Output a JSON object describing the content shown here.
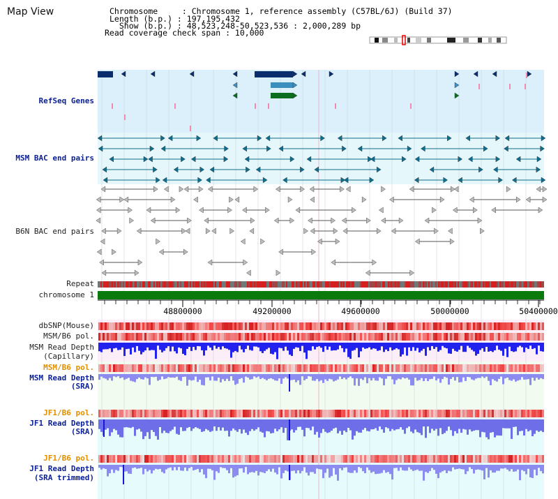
{
  "page_title": "Map View",
  "header": {
    "chromosome_line": "Chromosome     : Chromosome 1, reference assembly (C57BL/6J) (Build 37)",
    "length_line": "Length (b.p.) : 197,195,432",
    "show_line": "  Show (b.p.) : 48,523,248-50,523,536 : 2,000,289 bp",
    "coverage_line": "Read coverage check span : 10,000"
  },
  "tracks": {
    "refseq": "RefSeq Genes",
    "msm_bac": "MSM BAC end pairs",
    "b6n_bac": "B6N BAC end pairs",
    "repeat": "Repeat",
    "chromosome": "chromosome 1",
    "dbsnp": "dbSNP(Mouse)",
    "msm_b6_pol_1": "MSM/B6 pol.",
    "msm_depth_cap_1": "MSM Read Depth",
    "msm_depth_cap_2": "(Capillary)",
    "msm_b6_pol_2": "MSM/B6 pol.",
    "msm_depth_sra_1": "MSM Read Depth",
    "msm_depth_sra_2": "(SRA)",
    "jf1_b6_pol_1": "JF1/B6 pol.",
    "jf1_depth_sra_1": "JF1 Read Depth",
    "jf1_depth_sra_2": "(SRA)",
    "jf1_b6_pol_2": "JF1/B6 pol.",
    "jf1_depth_trim_1": "JF1 Read Depth",
    "jf1_depth_trim_2": "(SRA trimmed)"
  },
  "axis_ticks": [
    "48800000",
    "49200000",
    "49600000",
    "50000000",
    "50400000"
  ],
  "colors": {
    "refseq_bg": "#dcf0fb",
    "bac_bg": "#e6f7fb",
    "gene_dark": "#0a2d6e",
    "gene_mid": "#3b8fbf",
    "gene_green": "#0a6e1e",
    "bac_teal": "#0e6d8c",
    "chromosome_green": "#0a7a0a",
    "repeat_red": "#d42020",
    "depth_blue": "#2222ee"
  }
}
